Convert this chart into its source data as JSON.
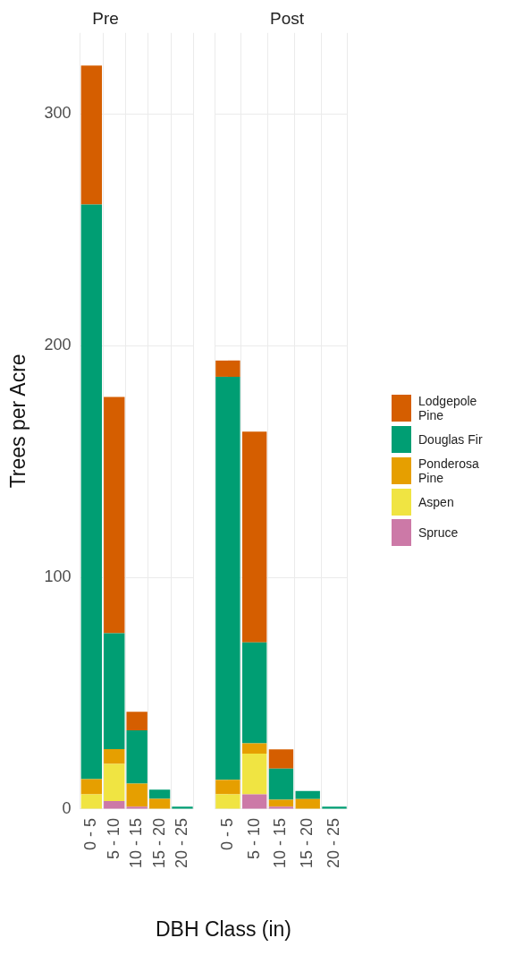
{
  "chart_data": [
    {
      "type": "bar",
      "title": "Pre",
      "ylabel": "Trees per Acre",
      "xlabel": "DBH Class (in)",
      "categories": [
        "0 - 5",
        "5 - 10",
        "10 - 15",
        "15 - 20",
        "20 - 25"
      ],
      "stacked": true,
      "ylim": [
        0,
        335
      ],
      "yticks": [
        0,
        100,
        200,
        300
      ],
      "grid": true,
      "legend": false,
      "series": [
        {
          "color": "#cc79a7",
          "values": [
            0,
            3.5,
            1,
            0,
            0
          ]
        },
        {
          "color": "#f0e442",
          "values": [
            6.4,
            16,
            0,
            0,
            0
          ]
        },
        {
          "color": "#e69f00",
          "values": [
            6.5,
            6.4,
            10,
            4.4,
            0
          ]
        },
        {
          "color": "#009e73",
          "values": [
            248,
            50,
            23,
            4,
            1
          ]
        },
        {
          "color": "#d55e00",
          "values": [
            60,
            102,
            8,
            0,
            0
          ]
        }
      ]
    },
    {
      "type": "bar",
      "title": "Post",
      "categories": [
        "0 - 5",
        "5 - 10",
        "10 - 15",
        "15 - 20",
        "20 - 25"
      ],
      "stacked": true,
      "ylim": [
        0,
        335
      ],
      "yticks": [
        0,
        100,
        200,
        300
      ],
      "grid": true,
      "legend": "right",
      "tick_labels": "x",
      "series": [
        {
          "name": "Spruce",
          "color": "#cc79a7",
          "values": [
            0,
            6.4,
            1,
            0,
            0
          ]
        },
        {
          "name": "Aspen",
          "color": "#f0e442",
          "values": [
            6.4,
            17.5,
            0,
            0,
            0
          ]
        },
        {
          "name": "Ponderosa Pine",
          "color": "#e69f00",
          "values": [
            6.2,
            4.5,
            3,
            4.3,
            0
          ]
        },
        {
          "name": "Douglas Fir",
          "color": "#009e73",
          "values": [
            174,
            43.5,
            13.5,
            3.5,
            1
          ]
        },
        {
          "name": "Lodgepole Pine",
          "color": "#d55e00",
          "values": [
            7,
            91,
            8.3,
            0,
            0
          ]
        }
      ]
    }
  ]
}
